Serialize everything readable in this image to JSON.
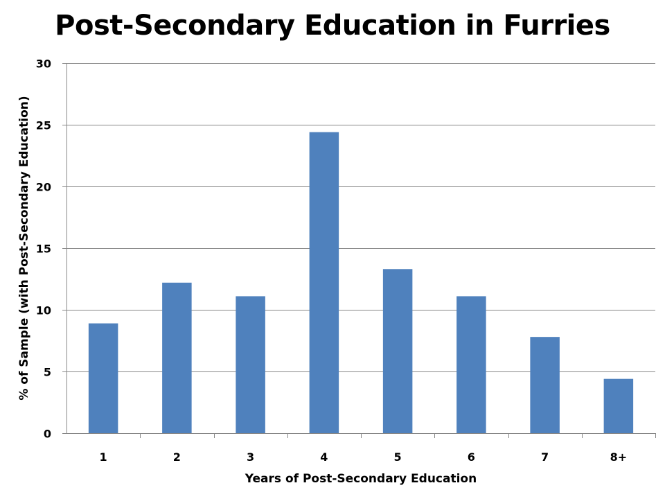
{
  "chart_data": {
    "type": "bar",
    "title": "Post-Secondary Education in Furries",
    "xlabel": "Years of Post-Secondary Education",
    "ylabel": "% of Sample (with Post-Secondary Education)",
    "categories": [
      "1",
      "2",
      "3",
      "4",
      "5",
      "6",
      "7",
      "8+"
    ],
    "values": [
      8.9,
      12.2,
      11.1,
      24.4,
      13.3,
      11.1,
      7.8,
      4.4
    ],
    "ylim": [
      0,
      30
    ],
    "yticks": [
      "0",
      "5",
      "10",
      "15",
      "20",
      "25",
      "30"
    ],
    "grid": true,
    "legend": "none",
    "bar_color": "#4f81bd",
    "grid_color": "#868686"
  }
}
